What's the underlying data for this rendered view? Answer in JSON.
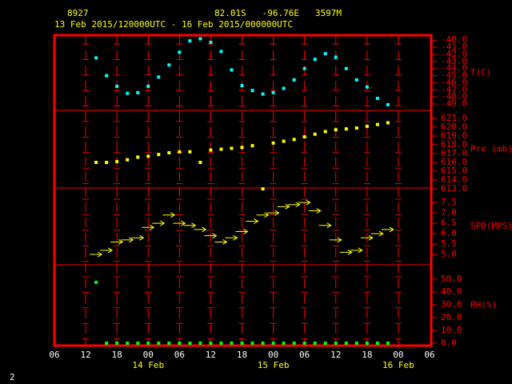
{
  "chart_data": {
    "type": "scatter",
    "station": "8927",
    "location": "82.01S   -96.76E   3597M",
    "title": "13 Feb 2015/120000UTC - 16 Feb 2015/000000UTC",
    "footer": "2",
    "xlim": [
      "2015-02-13T06:00",
      "2015-02-16T06:00"
    ],
    "xticks": [
      {
        "value": "2015-02-13T06:00",
        "label": "06"
      },
      {
        "value": "2015-02-13T12:00",
        "label": "12"
      },
      {
        "value": "2015-02-13T18:00",
        "label": "18"
      },
      {
        "value": "2015-02-14T00:00",
        "label": "00"
      },
      {
        "value": "2015-02-14T06:00",
        "label": "06"
      },
      {
        "value": "2015-02-14T12:00",
        "label": "12"
      },
      {
        "value": "2015-02-14T18:00",
        "label": "18"
      },
      {
        "value": "2015-02-15T00:00",
        "label": "00"
      },
      {
        "value": "2015-02-15T06:00",
        "label": "06"
      },
      {
        "value": "2015-02-15T12:00",
        "label": "12"
      },
      {
        "value": "2015-02-15T18:00",
        "label": "18"
      },
      {
        "value": "2015-02-16T00:00",
        "label": "00"
      },
      {
        "value": "2015-02-16T06:00",
        "label": "06"
      }
    ],
    "date_labels": [
      {
        "value": "2015-02-14T00:00",
        "label": "14 Feb"
      },
      {
        "value": "2015-02-15T00:00",
        "label": "15 Feb"
      },
      {
        "value": "2015-02-16T00:00",
        "label": "16 Feb"
      }
    ],
    "x": [
      "2015-02-13T14:00",
      "2015-02-13T16:00",
      "2015-02-13T18:00",
      "2015-02-13T20:00",
      "2015-02-13T22:00",
      "2015-02-14T00:00",
      "2015-02-14T02:00",
      "2015-02-14T04:00",
      "2015-02-14T06:00",
      "2015-02-14T08:00",
      "2015-02-14T10:00",
      "2015-02-14T12:00",
      "2015-02-14T14:00",
      "2015-02-14T16:00",
      "2015-02-14T18:00",
      "2015-02-14T20:00",
      "2015-02-14T22:00",
      "2015-02-15T00:00",
      "2015-02-15T02:00",
      "2015-02-15T04:00",
      "2015-02-15T06:00",
      "2015-02-15T08:00",
      "2015-02-15T10:00",
      "2015-02-15T12:00",
      "2015-02-15T14:00",
      "2015-02-15T16:00",
      "2015-02-15T18:00",
      "2015-02-15T20:00",
      "2015-02-15T22:00"
    ],
    "panels": [
      {
        "ylabel": "T(C)",
        "marker": "square",
        "color": "#00ffff",
        "ylim": [
          -49.9,
          -39.3
        ],
        "yticks": [
          {
            "value": -40,
            "label": "-40.0"
          },
          {
            "value": -41,
            "label": "-41.0"
          },
          {
            "value": -42,
            "label": "-42.0"
          },
          {
            "value": -43,
            "label": "-43.0"
          },
          {
            "value": -44,
            "label": "-44.0"
          },
          {
            "value": -45,
            "label": "-45.0"
          },
          {
            "value": -46,
            "label": "-46.0"
          },
          {
            "value": -47,
            "label": "-47.0"
          },
          {
            "value": -48,
            "label": "-48.0"
          },
          {
            "value": -49,
            "label": "-49.0"
          }
        ],
        "values": [
          -42.5,
          -45.0,
          -46.5,
          -47.5,
          -47.4,
          -46.5,
          -45.2,
          -43.5,
          -41.7,
          -40.1,
          -39.8,
          -40.3,
          -41.6,
          -44.2,
          -46.4,
          -47.1,
          -47.6,
          -47.4,
          -46.8,
          -45.6,
          -44.0,
          -42.7,
          -41.9,
          -42.4,
          -44.0,
          -45.6,
          -46.6,
          -48.2,
          -49.1
        ]
      },
      {
        "ylabel": "Pre (mb)",
        "marker": "square",
        "color": "#ffff00",
        "ylim": [
          613.1,
          621.9
        ],
        "yticks": [
          {
            "value": 613,
            "label": "613.0"
          },
          {
            "value": 614,
            "label": "614.0"
          },
          {
            "value": 615,
            "label": "615.0"
          },
          {
            "value": 616,
            "label": "616.0"
          },
          {
            "value": 617,
            "label": "617.0"
          },
          {
            "value": 618,
            "label": "618.0"
          },
          {
            "value": 619,
            "label": "619.0"
          },
          {
            "value": 620,
            "label": "620.0"
          },
          {
            "value": 621,
            "label": "621.0"
          }
        ],
        "values": [
          616.0,
          616.0,
          616.1,
          616.3,
          616.6,
          616.7,
          616.9,
          617.1,
          617.2,
          617.2,
          616.0,
          617.4,
          617.5,
          617.6,
          617.7,
          617.9,
          613.0,
          618.2,
          618.4,
          618.6,
          618.9,
          619.2,
          619.5,
          619.7,
          619.8,
          619.9,
          620.1,
          620.3,
          620.5
        ]
      },
      {
        "ylabel": "SPD(MPS)",
        "marker": "arrow",
        "color": "#ffff00",
        "ylim": [
          4.5,
          8.2
        ],
        "yticks": [
          {
            "value": 5,
            "label": "5.0"
          },
          5.5,
          {
            "value": 6,
            "label": "6.0"
          },
          6.5,
          {
            "value": 7,
            "label": "7.0"
          },
          7.5
        ],
        "values": [
          5.0,
          5.2,
          5.6,
          5.7,
          5.8,
          6.3,
          6.5,
          6.9,
          6.5,
          6.4,
          6.2,
          5.9,
          5.6,
          5.8,
          6.1,
          6.6,
          6.9,
          7.0,
          7.3,
          7.4,
          7.5,
          7.1,
          6.4,
          5.7,
          5.1,
          5.2,
          5.8,
          6.0,
          6.2
        ]
      },
      {
        "ylabel": "RH(%)",
        "marker": "square",
        "color": "#00ff00",
        "ylim": [
          -1.9,
          61.2
        ],
        "yticks": [
          {
            "value": 0,
            "label": "0.0"
          },
          {
            "value": 10,
            "label": "10.0"
          },
          {
            "value": 20,
            "label": "20.0"
          },
          {
            "value": 30,
            "label": "30.0"
          },
          {
            "value": 40,
            "label": "40.0"
          },
          {
            "value": 50,
            "label": "50.0"
          }
        ],
        "values": [
          47.5,
          0,
          0,
          0,
          0,
          0,
          0,
          0,
          0,
          0,
          0,
          0,
          0,
          0,
          0,
          0,
          0,
          0,
          0,
          0,
          0,
          0,
          0,
          0,
          0,
          0,
          0,
          0,
          0
        ]
      }
    ]
  }
}
